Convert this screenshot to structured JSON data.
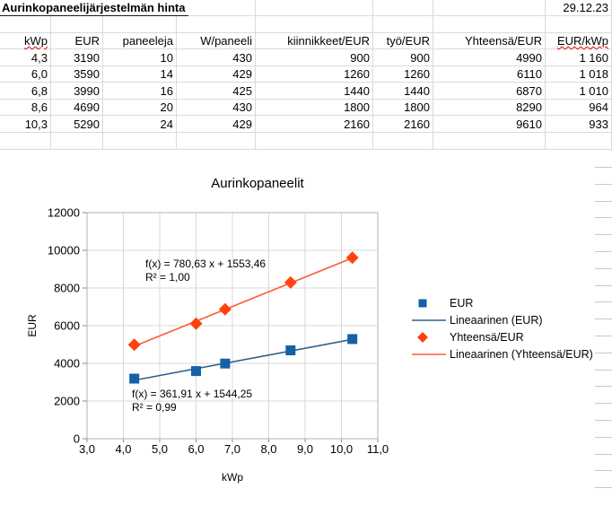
{
  "sheet": {
    "title": "Aurinkopaneelijärjestelmän hinta",
    "date": "29.12.23",
    "columns": [
      "kWp",
      "EUR",
      "paneeleja",
      "W/paneeli",
      "kiinnikkeet/EUR",
      "työ/EUR",
      "Yhteensä/EUR",
      "EUR/kWp"
    ],
    "misspelled_headers": [
      "kWp",
      "EUR/kWp"
    ],
    "rows": [
      [
        "4,3",
        "3190",
        "10",
        "430",
        "900",
        "900",
        "4990",
        "1 160"
      ],
      [
        "6,0",
        "3590",
        "14",
        "429",
        "1260",
        "1260",
        "6110",
        "1 018"
      ],
      [
        "6,8",
        "3990",
        "16",
        "425",
        "1440",
        "1440",
        "6870",
        "1 010"
      ],
      [
        "8,6",
        "4690",
        "20",
        "430",
        "1800",
        "1800",
        "8290",
        "964"
      ],
      [
        "10,3",
        "5290",
        "24",
        "429",
        "2160",
        "2160",
        "9610",
        "933"
      ]
    ]
  },
  "chart_data": {
    "type": "scatter",
    "title": "Aurinkopaneelit",
    "xlabel": "kWp",
    "ylabel": "EUR",
    "xlim": [
      3.0,
      11.0
    ],
    "ylim": [
      0,
      12000
    ],
    "x_ticks": [
      "3,0",
      "4,0",
      "5,0",
      "6,0",
      "7,0",
      "8,0",
      "9,0",
      "10,0",
      "11,0"
    ],
    "y_ticks": [
      "0",
      "2000",
      "4000",
      "6000",
      "8000",
      "10000",
      "12000"
    ],
    "grid": true,
    "legend_position": "right",
    "series": [
      {
        "name": "EUR",
        "marker": "square",
        "color": "#1461a8",
        "x": [
          4.3,
          6.0,
          6.8,
          8.6,
          10.3
        ],
        "y": [
          3190,
          3590,
          3990,
          4690,
          5290
        ]
      },
      {
        "name": "Yhteensä/EUR",
        "marker": "diamond",
        "color": "#ff420e",
        "x": [
          4.3,
          6.0,
          6.8,
          8.6,
          10.3
        ],
        "y": [
          4990,
          6110,
          6870,
          8290,
          9610
        ]
      }
    ],
    "trendlines": [
      {
        "name": "Lineaarinen (EUR)",
        "series": "EUR",
        "color": "#2e618e",
        "slope": 361.91,
        "intercept": 1544.25,
        "label": "f(x) = 361,91 x + 1544,25",
        "r2_label": "R² = 0,99"
      },
      {
        "name": "Lineaarinen (Yhteensä/EUR)",
        "series": "Yhteensä/EUR",
        "color": "#ff5a30",
        "slope": 780.63,
        "intercept": 1553.46,
        "label": "f(x) = 780,63 x + 1553,46",
        "r2_label": "R² = 1,00"
      }
    ],
    "legend": [
      {
        "label": "EUR",
        "icon": "square",
        "color": "#1461a8"
      },
      {
        "label": "Lineaarinen (EUR)",
        "icon": "line",
        "color": "#2e618e"
      },
      {
        "label": "Yhteensä/EUR",
        "icon": "diamond",
        "color": "#ff420e"
      },
      {
        "label": "Lineaarinen (Yhteensä/EUR)",
        "icon": "line",
        "color": "#ff5a30"
      }
    ]
  }
}
